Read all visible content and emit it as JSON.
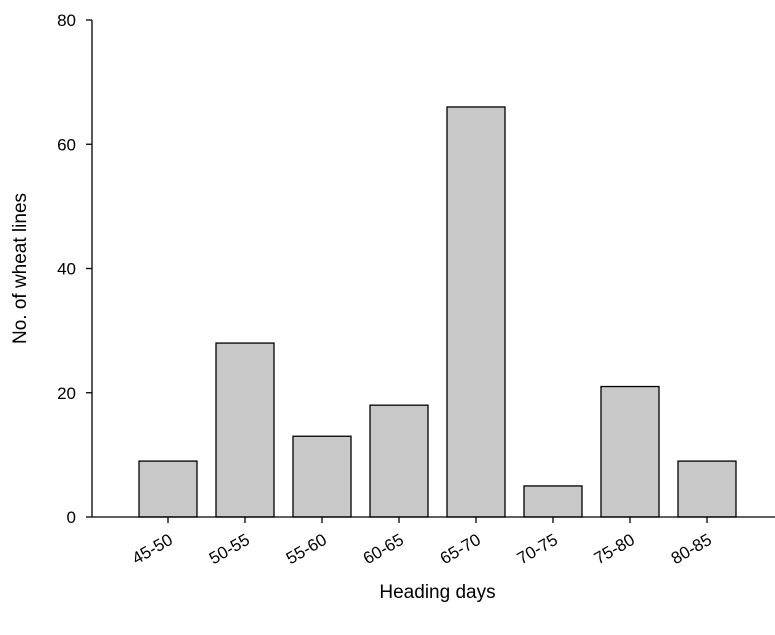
{
  "chart_data": {
    "type": "bar",
    "title": "",
    "xlabel": "Heading days",
    "ylabel": "No. of wheat lines",
    "categories": [
      "45-50",
      "50-55",
      "55-60",
      "60-65",
      "65-70",
      "70-75",
      "75-80",
      "80-85"
    ],
    "values": [
      9,
      28,
      13,
      18,
      66,
      5,
      21,
      9
    ],
    "ylim": [
      0,
      80
    ],
    "yticks": [
      0,
      20,
      40,
      60,
      80
    ],
    "grid": false,
    "bar_color": "#c8c8c8",
    "bar_edge_color": "#000000"
  }
}
